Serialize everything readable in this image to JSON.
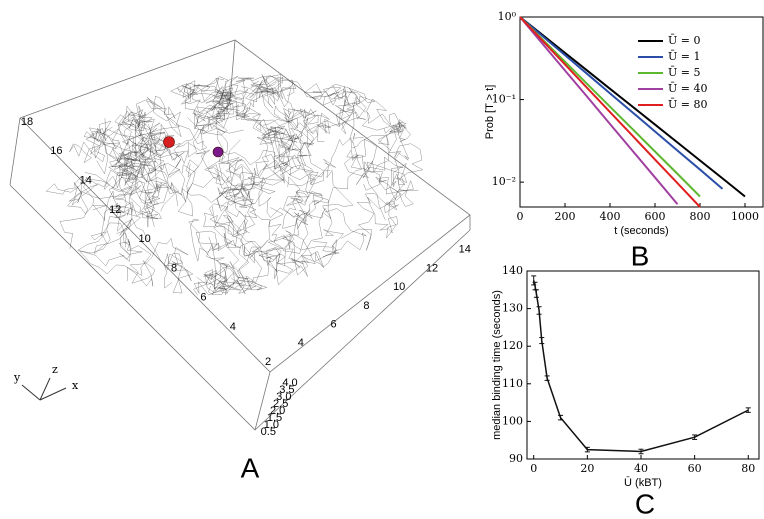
{
  "panel_a": {
    "label": "A",
    "axis_triad": [
      "y",
      "z",
      "x"
    ],
    "depth_ticks": [
      18,
      16,
      14,
      12,
      10,
      8,
      6,
      4
    ],
    "width_ticks": [
      2,
      4,
      6,
      8,
      10,
      12,
      14
    ],
    "height_ticks": [
      {
        "value": 4,
        "label": "4.0"
      },
      3.5,
      {
        "value": 3,
        "label": "3.0"
      },
      2.5,
      {
        "value": 2,
        "label": "2.0"
      },
      1.5,
      {
        "value": 1,
        "label": "1.0"
      },
      0.5
    ]
  },
  "chart_data": [
    {
      "type": "line",
      "panel_label": "B",
      "xlabel": "t (seconds)",
      "ylabel": "Prob [T > t]",
      "x": [
        0,
        100,
        200,
        300,
        400,
        500,
        600,
        700,
        800,
        900,
        1000
      ],
      "xlim": [
        0,
        1080
      ],
      "xticks": [
        0,
        200,
        400,
        600,
        800,
        1000
      ],
      "ylim": [
        0.005,
        1
      ],
      "log_y": true,
      "yticks": [
        {
          "value": 1,
          "label": "10⁰"
        },
        {
          "value": 0.1,
          "label": "10⁻¹"
        },
        {
          "value": 0.01,
          "label": "10⁻²"
        }
      ],
      "legend": "upper right",
      "series": [
        {
          "name": "Ū = 0",
          "color": "#000000",
          "values": [
            1,
            0.607,
            0.368,
            0.223,
            0.135,
            0.0821,
            0.0498,
            0.0302,
            0.0183,
            0.0111,
            0.0067
          ]
        },
        {
          "name": "Ū = 1",
          "color": "#2b4fa8",
          "values": [
            1,
            0.587,
            0.345,
            0.203,
            0.119,
            0.07,
            0.0411,
            0.0241,
            0.0142,
            0.0083,
            null
          ]
        },
        {
          "name": "Ū = 5",
          "color": "#5cb82e",
          "values": [
            1,
            0.535,
            0.287,
            0.153,
            0.082,
            0.0439,
            0.0235,
            0.0126,
            0.0067,
            null,
            null
          ]
        },
        {
          "name": "Ū = 40",
          "color": "#a040a0",
          "values": [
            1,
            0.474,
            0.225,
            0.107,
            0.0506,
            0.024,
            0.0114,
            0.0054,
            null,
            null,
            null
          ]
        },
        {
          "name": "Ū = 80",
          "color": "#e02020",
          "values": [
            1,
            0.516,
            0.266,
            0.137,
            0.0707,
            0.0365,
            0.0188,
            0.0097,
            0.005,
            null,
            null
          ]
        }
      ]
    },
    {
      "type": "errorbar",
      "panel_label": "C",
      "xlabel": "Ū (kBT)",
      "ylabel": "median binding time (seconds)",
      "x": [
        0,
        0.5,
        1,
        2,
        3,
        5,
        10,
        20,
        40,
        60,
        80
      ],
      "values": [
        137.5,
        136,
        134,
        129.5,
        121.5,
        111.5,
        101,
        92.5,
        92,
        95.8,
        103
      ],
      "errors": [
        1.2,
        1,
        1,
        1,
        0.8,
        0.6,
        0.6,
        0.6,
        0.6,
        0.6,
        0.6
      ],
      "color": "#111111",
      "xlim": [
        -2.5,
        84
      ],
      "xticks": [
        0,
        20,
        40,
        60,
        80
      ],
      "ylim": [
        90,
        140
      ],
      "yticks": [
        90,
        100,
        110,
        120,
        130,
        140
      ]
    }
  ]
}
